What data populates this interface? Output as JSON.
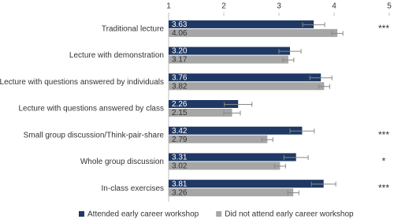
{
  "chart_data": {
    "type": "bar",
    "orientation": "horizontal",
    "categories": [
      "Traditional lecture",
      "Lecture with demonstration",
      "Lecture with questions answered by individuals",
      "Lecture with questions answered by class",
      "Small group discussion/Think-pair-share",
      "Whole group discussion",
      "In-class exercises"
    ],
    "series": [
      {
        "name": "Attended early career workshop",
        "color": "#1f3864",
        "values": [
          3.63,
          3.2,
          3.76,
          2.26,
          3.42,
          3.31,
          3.81
        ],
        "value_labels": [
          "3.63",
          "3.20",
          "3.76",
          "2.26",
          "3.42",
          "3.31",
          "3.81"
        ],
        "errors": [
          0.2,
          0.2,
          0.2,
          0.25,
          0.22,
          0.22,
          0.22
        ]
      },
      {
        "name": "Did not attend early career workshop",
        "color": "#a6a6a6",
        "values": [
          4.06,
          3.17,
          3.82,
          2.15,
          2.79,
          3.02,
          3.26
        ],
        "value_labels": [
          "4.06",
          "3.17",
          "3.82",
          "2.15",
          "2.79",
          "3.02",
          "3.26"
        ],
        "errors": [
          0.1,
          0.1,
          0.1,
          0.15,
          0.1,
          0.1,
          0.1
        ]
      }
    ],
    "significance": [
      "***",
      null,
      null,
      null,
      "***",
      "*",
      "***"
    ],
    "xlim": [
      1,
      5
    ],
    "xticks": [
      1,
      2,
      3,
      4,
      5
    ],
    "grid": false,
    "legend": "bottom"
  }
}
